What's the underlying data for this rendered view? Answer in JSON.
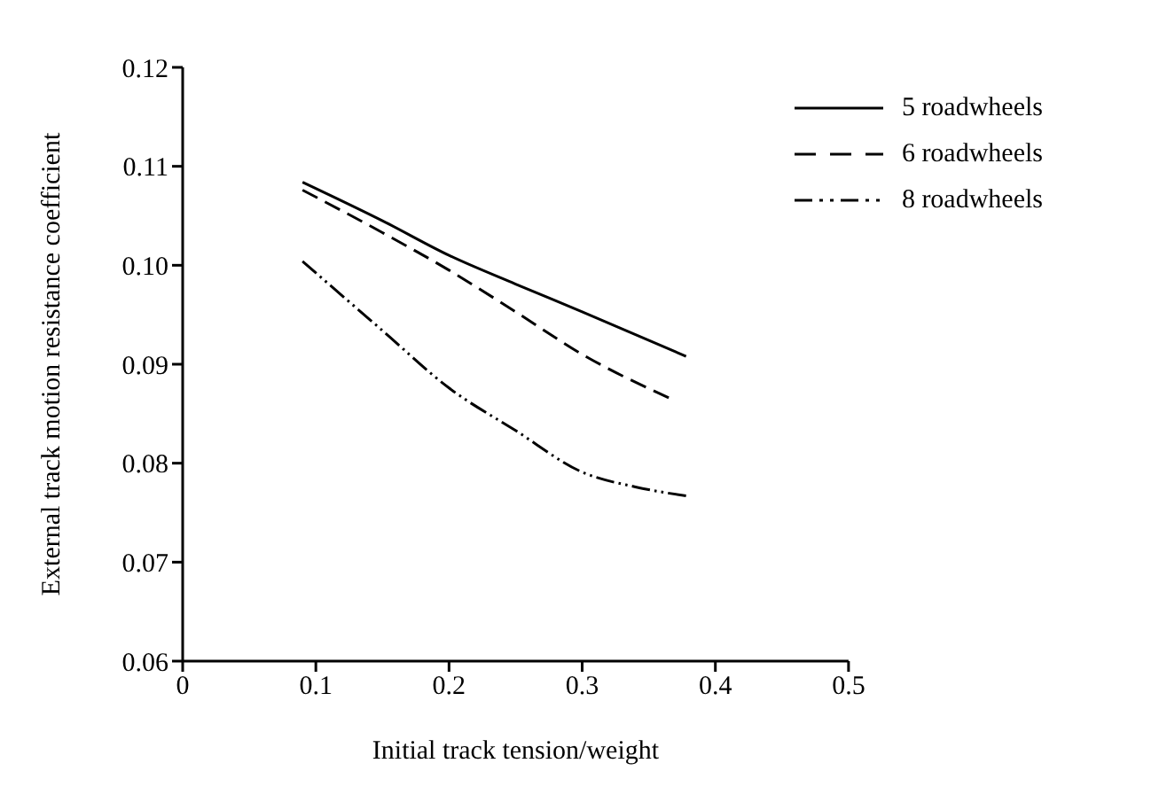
{
  "chart_data": {
    "type": "line",
    "xlabel": "Initial track tension/weight",
    "ylabel": "External track motion resistance coefficient",
    "xlim": [
      0,
      0.5
    ],
    "xticks": [
      0,
      0.1,
      0.2,
      0.3,
      0.4,
      0.5
    ],
    "ylim": [
      0.06,
      0.12
    ],
    "yticks": [
      0.06,
      0.07,
      0.08,
      0.09,
      {
        "value": 0.1,
        "label": "0.10"
      },
      0.11,
      0.12
    ],
    "grid": false,
    "legend": "top right",
    "marker": "none",
    "series": [
      {
        "name": "5 roadwheels",
        "color": "#000000",
        "line_style": "solid",
        "x": [
          0.09,
          0.15,
          0.2,
          0.25,
          0.3,
          0.378
        ],
        "values": [
          0.1084,
          0.1045,
          0.101,
          0.0981,
          0.0953,
          0.0908
        ]
      },
      {
        "name": "6 roadwheels",
        "color": "#000000",
        "line_style": "dashed",
        "x": [
          0.09,
          0.15,
          0.2,
          0.25,
          0.3,
          0.365
        ],
        "values": [
          0.1076,
          0.1033,
          0.0995,
          0.0953,
          0.091,
          0.0866
        ]
      },
      {
        "name": "8 roadwheels",
        "color": "#000000",
        "line_style": "dashdot",
        "x": [
          0.09,
          0.15,
          0.2,
          0.25,
          0.3,
          0.34,
          0.378
        ],
        "values": [
          0.1004,
          0.0934,
          0.0876,
          0.0833,
          0.0791,
          0.0776,
          0.0767
        ]
      }
    ]
  }
}
